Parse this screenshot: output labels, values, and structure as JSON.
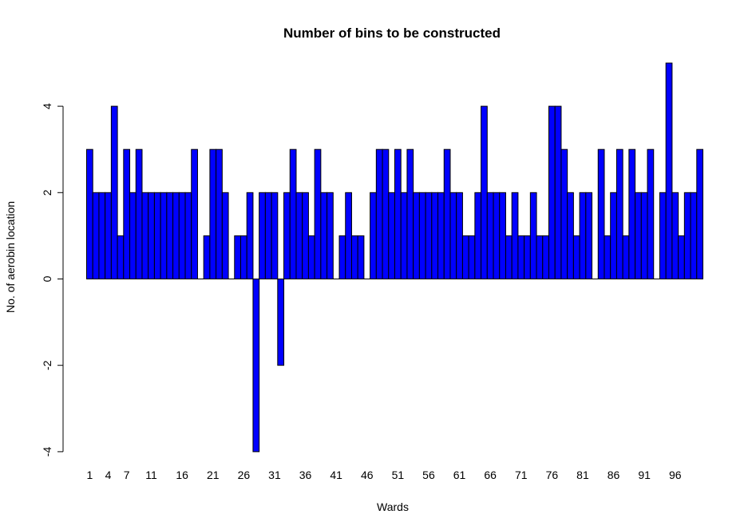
{
  "chart_data": {
    "type": "bar",
    "title": "Number of bins to be constructed",
    "xlabel": "Wards",
    "ylabel": "No. of aerobin location",
    "ylim": [
      -4,
      5
    ],
    "yticks": [
      -4,
      -2,
      0,
      2,
      4
    ],
    "xtick_labels": [
      "1",
      "4",
      "7",
      "11",
      "16",
      "21",
      "26",
      "31",
      "36",
      "41",
      "46",
      "51",
      "56",
      "61",
      "66",
      "71",
      "76",
      "81",
      "86",
      "91",
      "96"
    ],
    "xtick_categories": [
      1,
      4,
      7,
      11,
      16,
      21,
      26,
      31,
      36,
      41,
      46,
      51,
      56,
      61,
      66,
      71,
      76,
      81,
      86,
      91,
      96
    ],
    "bar_color": "#0000ff",
    "categories": [
      1,
      2,
      3,
      4,
      5,
      6,
      7,
      8,
      9,
      10,
      11,
      12,
      13,
      14,
      15,
      16,
      17,
      18,
      19,
      20,
      21,
      22,
      23,
      24,
      25,
      26,
      27,
      28,
      29,
      30,
      31,
      32,
      33,
      34,
      35,
      36,
      37,
      38,
      39,
      40,
      41,
      42,
      43,
      44,
      45,
      46,
      47,
      48,
      49,
      50,
      51,
      52,
      53,
      54,
      55,
      56,
      57,
      58,
      59,
      60,
      61,
      62,
      63,
      64,
      65,
      66,
      67,
      68,
      69,
      70,
      71,
      72,
      73,
      74,
      75,
      76,
      77,
      78,
      79,
      80,
      81,
      82,
      83,
      84,
      85,
      86,
      87,
      88,
      89,
      90,
      91,
      92,
      93,
      94,
      95,
      96,
      97,
      98,
      99,
      100
    ],
    "values": [
      3,
      2,
      2,
      2,
      4,
      1,
      3,
      2,
      3,
      2,
      2,
      2,
      2,
      2,
      2,
      2,
      2,
      3,
      0,
      1,
      3,
      3,
      2,
      0,
      1,
      1,
      2,
      -4,
      2,
      2,
      2,
      -2,
      2,
      3,
      2,
      2,
      1,
      3,
      2,
      2,
      0,
      1,
      2,
      1,
      1,
      0,
      2,
      3,
      3,
      2,
      3,
      2,
      3,
      2,
      2,
      2,
      2,
      2,
      3,
      2,
      2,
      1,
      1,
      2,
      4,
      2,
      2,
      2,
      1,
      2,
      1,
      1,
      2,
      1,
      1,
      4,
      4,
      3,
      2,
      1,
      2,
      2,
      0,
      3,
      1,
      2,
      3,
      1,
      3,
      2,
      2,
      3,
      0,
      2,
      5,
      2,
      1,
      2,
      2,
      3
    ]
  }
}
